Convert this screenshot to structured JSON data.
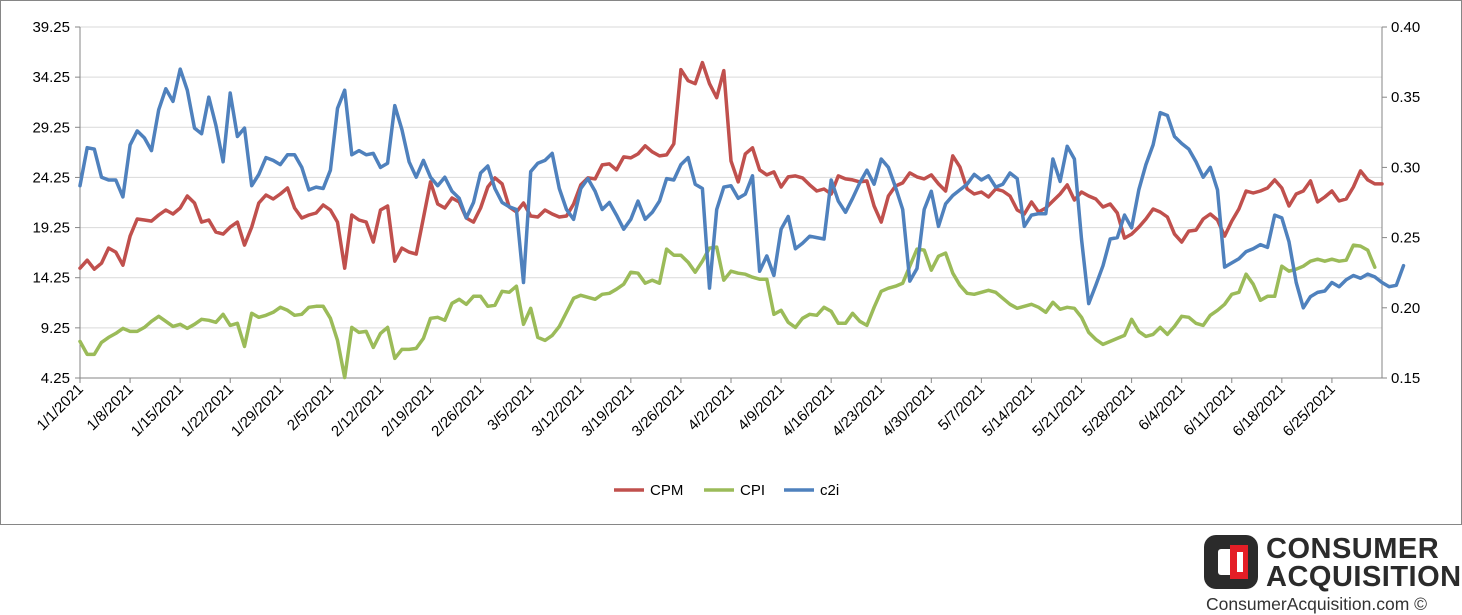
{
  "colors": {
    "CPM": "#c0504d",
    "CPI": "#9bbb59",
    "c2i": "#4f81bd",
    "axis": "#868686",
    "grid": "#d9d9d9",
    "brand_red": "#e41e26",
    "brand_dark": "#2b2b2b"
  },
  "chart_data": {
    "type": "line",
    "grid": true,
    "legend": "bottom",
    "title": "",
    "y_left": {
      "ticks": [
        "4.25",
        "9.25",
        "14.25",
        "19.25",
        "24.25",
        "29.25",
        "34.25",
        "39.25"
      ],
      "range": [
        4.25,
        39.25
      ]
    },
    "y_right": {
      "ticks": [
        "0.15",
        "0.20",
        "0.25",
        "0.30",
        "0.35",
        "0.40"
      ],
      "range": [
        0.15,
        0.4
      ]
    },
    "x_tick_labels": [
      "1/1/2021",
      "1/8/2021",
      "1/15/2021",
      "1/22/2021",
      "1/29/2021",
      "2/5/2021",
      "2/12/2021",
      "2/19/2021",
      "2/26/2021",
      "3/5/2021",
      "3/12/2021",
      "3/19/2021",
      "3/26/2021",
      "4/2/2021",
      "4/9/2021",
      "4/16/2021",
      "4/23/2021",
      "4/30/2021",
      "5/7/2021",
      "5/14/2021",
      "5/21/2021",
      "5/28/2021",
      "6/4/2021",
      "6/11/2021",
      "6/18/2021",
      "6/25/2021"
    ],
    "x_tick_step_days": 7,
    "series": [
      {
        "name": "CPM",
        "axis": "left",
        "values": [
          15.2,
          16.0,
          15.1,
          15.7,
          17.2,
          16.8,
          15.5,
          18.4,
          20.1,
          20.0,
          19.9,
          20.5,
          21.0,
          20.6,
          21.2,
          22.4,
          21.7,
          19.8,
          20.0,
          18.8,
          18.6,
          19.3,
          19.8,
          17.5,
          19.3,
          21.7,
          22.5,
          22.1,
          22.6,
          23.2,
          21.2,
          20.2,
          20.5,
          20.7,
          21.5,
          21.0,
          19.8,
          15.2,
          20.5,
          20.0,
          19.8,
          17.8,
          21.0,
          21.4,
          15.9,
          17.2,
          16.8,
          16.6,
          20.2,
          23.8,
          21.6,
          21.2,
          22.2,
          21.8,
          20.2,
          19.8,
          21.2,
          23.3,
          24.2,
          23.6,
          21.3,
          20.8,
          21.7,
          20.4,
          20.3,
          21.0,
          20.6,
          20.3,
          20.4,
          21.6,
          23.5,
          24.2,
          24.1,
          25.5,
          25.6,
          25.0,
          26.3,
          26.2,
          26.6,
          27.4,
          26.8,
          26.4,
          26.5,
          27.6,
          35.0,
          33.9,
          33.6,
          35.7,
          33.6,
          32.2,
          34.9,
          25.9,
          23.8,
          26.6,
          27.2,
          25.0,
          24.5,
          24.8,
          23.3,
          24.3,
          24.4,
          24.2,
          23.5,
          22.9,
          23.1,
          22.6,
          24.4,
          24.1,
          24.0,
          23.8,
          23.9,
          21.4,
          19.8,
          22.4,
          23.4,
          23.7,
          24.7,
          24.3,
          24.1,
          24.5,
          23.6,
          22.9,
          26.4,
          25.3,
          23.1,
          22.6,
          22.8,
          22.3,
          23.1,
          22.9,
          22.4,
          21.0,
          20.6,
          21.8,
          20.8,
          21.2,
          21.9,
          22.6,
          23.5,
          22.0,
          22.8,
          22.4,
          22.1,
          21.3,
          21.6,
          20.7,
          18.2,
          18.6,
          19.3,
          20.1,
          21.1,
          20.8,
          20.3,
          18.6,
          17.8,
          18.9,
          19.0,
          20.1,
          20.6,
          20.0,
          18.4,
          19.9,
          21.1,
          22.9,
          22.7,
          22.9,
          23.2,
          24.0,
          23.2,
          21.4,
          22.6,
          22.9,
          23.9,
          21.8,
          22.3,
          22.9,
          21.9,
          22.1,
          23.3,
          24.9,
          24.0,
          23.6,
          23.6
        ]
      },
      {
        "name": "CPI",
        "axis": "left",
        "values": [
          7.9,
          6.6,
          6.6,
          7.8,
          8.3,
          8.7,
          9.2,
          8.9,
          8.9,
          9.3,
          9.9,
          10.4,
          9.9,
          9.4,
          9.6,
          9.2,
          9.6,
          10.1,
          10.0,
          9.8,
          10.6,
          9.5,
          9.7,
          7.4,
          10.7,
          10.3,
          10.5,
          10.8,
          11.3,
          11.0,
          10.5,
          10.6,
          11.3,
          11.4,
          11.4,
          10.2,
          8.0,
          4.3,
          9.3,
          8.8,
          8.9,
          7.3,
          8.7,
          9.3,
          6.2,
          7.1,
          7.1,
          7.2,
          8.2,
          10.2,
          10.3,
          10.0,
          11.7,
          12.1,
          11.6,
          12.4,
          12.4,
          11.4,
          11.5,
          12.9,
          12.8,
          13.4,
          9.6,
          11.2,
          8.3,
          8.0,
          8.5,
          9.4,
          10.8,
          12.2,
          12.5,
          12.3,
          12.1,
          12.6,
          12.7,
          13.1,
          13.6,
          14.8,
          14.7,
          13.7,
          14.0,
          13.7,
          17.1,
          16.5,
          16.5,
          15.8,
          14.8,
          15.9,
          17.2,
          17.3,
          14.0,
          14.9,
          14.7,
          14.6,
          14.3,
          14.1,
          14.1,
          10.6,
          11.0,
          9.8,
          9.3,
          10.2,
          10.6,
          10.5,
          11.3,
          10.9,
          9.7,
          9.7,
          10.7,
          9.9,
          9.5,
          11.3,
          12.9,
          13.2,
          13.4,
          13.7,
          15.4,
          17.1,
          17.0,
          15.0,
          16.4,
          16.7,
          14.7,
          13.5,
          12.7,
          12.6,
          12.8,
          13.0,
          12.8,
          12.2,
          11.6,
          11.2,
          11.4,
          11.6,
          11.3,
          10.8,
          11.8,
          11.1,
          11.3,
          11.2,
          10.3,
          8.8,
          8.1,
          7.6,
          7.9,
          8.2,
          8.5,
          10.1,
          8.9,
          8.4,
          8.6,
          9.3,
          8.6,
          9.4,
          10.4,
          10.3,
          9.7,
          9.5,
          10.5,
          11.0,
          11.6,
          12.6,
          12.8,
          14.6,
          13.6,
          12.0,
          12.4,
          12.4,
          15.4,
          14.9,
          15.1,
          15.4,
          15.9,
          16.1,
          15.9,
          16.1,
          15.9,
          16.0,
          17.5,
          17.4,
          17.0,
          15.3
        ]
      },
      {
        "name": "c2i",
        "axis": "right",
        "values": [
          0.287,
          0.314,
          0.313,
          0.293,
          0.291,
          0.291,
          0.279,
          0.316,
          0.326,
          0.321,
          0.312,
          0.341,
          0.356,
          0.347,
          0.37,
          0.355,
          0.328,
          0.324,
          0.35,
          0.33,
          0.304,
          0.353,
          0.322,
          0.328,
          0.287,
          0.295,
          0.307,
          0.305,
          0.302,
          0.309,
          0.309,
          0.3,
          0.284,
          0.286,
          0.285,
          0.298,
          0.342,
          0.355,
          0.309,
          0.312,
          0.309,
          0.31,
          0.3,
          0.303,
          0.344,
          0.327,
          0.304,
          0.293,
          0.305,
          0.293,
          0.287,
          0.293,
          0.283,
          0.278,
          0.264,
          0.275,
          0.296,
          0.301,
          0.285,
          0.275,
          0.272,
          0.27,
          0.218,
          0.297,
          0.303,
          0.305,
          0.31,
          0.285,
          0.27,
          0.263,
          0.285,
          0.292,
          0.283,
          0.27,
          0.275,
          0.266,
          0.256,
          0.263,
          0.276,
          0.263,
          0.268,
          0.276,
          0.292,
          0.291,
          0.302,
          0.307,
          0.288,
          0.285,
          0.214,
          0.27,
          0.286,
          0.287,
          0.278,
          0.281,
          0.294,
          0.226,
          0.237,
          0.223,
          0.256,
          0.265,
          0.242,
          0.246,
          0.251,
          0.25,
          0.249,
          0.291,
          0.276,
          0.268,
          0.278,
          0.289,
          0.298,
          0.288,
          0.306,
          0.3,
          0.286,
          0.27,
          0.219,
          0.228,
          0.27,
          0.283,
          0.258,
          0.274,
          0.28,
          0.284,
          0.288,
          0.295,
          0.291,
          0.294,
          0.286,
          0.288,
          0.296,
          0.292,
          0.258,
          0.266,
          0.267,
          0.267,
          0.306,
          0.29,
          0.315,
          0.306,
          0.249,
          0.203,
          0.216,
          0.23,
          0.249,
          0.25,
          0.266,
          0.257,
          0.284,
          0.302,
          0.316,
          0.339,
          0.337,
          0.322,
          0.317,
          0.313,
          0.304,
          0.293,
          0.3,
          0.284,
          0.229,
          0.232,
          0.235,
          0.24,
          0.242,
          0.245,
          0.243,
          0.266,
          0.264,
          0.247,
          0.218,
          0.2,
          0.208,
          0.211,
          0.212,
          0.218,
          0.215,
          0.22,
          0.223,
          0.221,
          0.224,
          0.222,
          0.218,
          0.215,
          0.216,
          0.23
        ]
      }
    ]
  },
  "legend": [
    {
      "label": "CPM",
      "key": "CPM"
    },
    {
      "label": "CPI",
      "key": "CPI"
    },
    {
      "label": "c2i",
      "key": "c2i"
    }
  ],
  "brand": {
    "line1": "CONSUMER",
    "line2": "ACQUISITION",
    "url": "ConsumerAcquisition.com ©"
  }
}
